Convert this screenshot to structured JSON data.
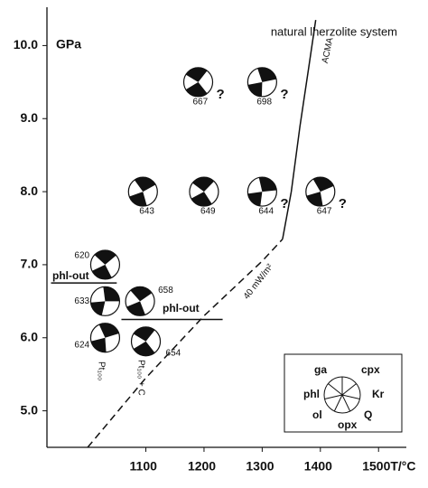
{
  "chart_data": {
    "type": "scatter",
    "y_label": "GPa",
    "system_label": "natural lherzolite system",
    "xlim": [
      930,
      1540
    ],
    "ylim": [
      4.5,
      10.5
    ],
    "xticks": [
      1100,
      1200,
      1300,
      1400,
      {
        "value": 1500,
        "label": "1500T/°C"
      }
    ],
    "yticks": [
      {
        "value": 5,
        "label": "5.0"
      },
      {
        "value": 6,
        "label": "6.0"
      },
      {
        "value": 7,
        "label": "7.0"
      },
      {
        "value": 8,
        "label": "8.0"
      },
      {
        "value": 9,
        "label": "9.0"
      },
      {
        "value": 10,
        "label": "10.0"
      }
    ],
    "points": {
      "labels": [
        "667",
        "698",
        "643",
        "649",
        "644",
        "647",
        "620",
        "633",
        "624",
        "658",
        "654"
      ],
      "x": [
        1190,
        1300,
        1095,
        1200,
        1300,
        1400,
        1030,
        1030,
        1030,
        1090,
        1100
      ],
      "y": [
        9.5,
        9.5,
        8.0,
        8.0,
        8.0,
        8.0,
        7.0,
        6.5,
        6.0,
        6.5,
        5.95
      ],
      "notes": [
        "?",
        "?",
        null,
        null,
        "?",
        "?",
        null,
        null,
        null,
        null,
        null
      ]
    },
    "lines": [
      {
        "name": "ACMA",
        "dashed": false,
        "x": [
          1335,
          1350,
          1365,
          1380,
          1392
        ],
        "y": [
          7.35,
          8.0,
          8.9,
          9.7,
          10.35
        ]
      },
      {
        "name": "40 mW/m²",
        "dashed": true,
        "x": [
          1000,
          1100,
          1200,
          1300,
          1335
        ],
        "y": [
          4.5,
          5.45,
          6.3,
          7.05,
          7.35
        ]
      },
      {
        "name": "phl-out",
        "dashed": false,
        "x": [
          937,
          1050
        ],
        "y": [
          6.75,
          6.75
        ]
      },
      {
        "name": "phl-out",
        "dashed": false,
        "x": [
          1058,
          1232
        ],
        "y": [
          6.25,
          6.25
        ]
      }
    ],
    "annotations": [
      "Pt₁₀₀",
      "Pt₁₀₀ + C"
    ],
    "legend": {
      "labels": [
        "ga",
        "cpx",
        "phl",
        "Kr",
        "ol",
        "opx",
        "Q"
      ]
    }
  }
}
